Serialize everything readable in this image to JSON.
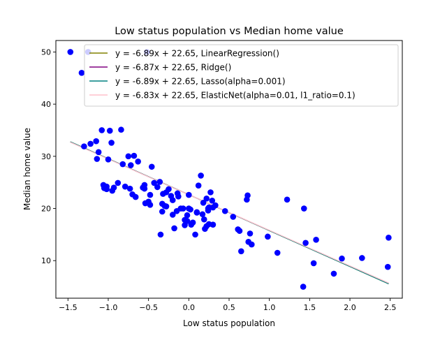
{
  "chart_data": {
    "type": "scatter",
    "title": "Low status population vs Median home value",
    "xlabel": "Low status population",
    "ylabel": "Median home value",
    "xlim": [
      -1.65,
      2.65
    ],
    "ylim": [
      2.8,
      52.2
    ],
    "xticks": [
      -1.5,
      -1.0,
      -0.5,
      0.0,
      0.5,
      1.0,
      1.5,
      2.0,
      2.5
    ],
    "xtick_labels": [
      "−1.5",
      "−1.0",
      "−0.5",
      "0.0",
      "0.5",
      "1.0",
      "1.5",
      "2.0",
      "2.5"
    ],
    "yticks": [
      10,
      20,
      30,
      40,
      50
    ],
    "ytick_labels": [
      "10",
      "20",
      "30",
      "40",
      "50"
    ],
    "grid": false,
    "legend_position": "top-right",
    "points": {
      "color": "#0000ff",
      "x": [
        -1.47,
        -1.33,
        -1.25,
        -1.22,
        -1.3,
        -1.15,
        -1.14,
        -1.08,
        -1.06,
        -1.12,
        -0.98,
        -1.0,
        -0.96,
        -1.02,
        -0.93,
        -0.88,
        -0.84,
        -0.82,
        -0.79,
        -0.75,
        -0.73,
        -0.7,
        -0.68,
        -0.66,
        -0.72,
        -0.63,
        -0.57,
        -0.54,
        -0.52,
        -0.48,
        -0.46,
        -0.43,
        -0.39,
        -0.35,
        -0.33,
        -0.3,
        -0.28,
        -0.25,
        -0.22,
        -0.2,
        -0.18,
        -0.15,
        -0.13,
        -0.1,
        -0.05,
        -0.02,
        0.0,
        0.02,
        0.05,
        0.08,
        0.1,
        0.12,
        0.15,
        0.17,
        0.19,
        0.2,
        0.22,
        0.24,
        0.25,
        0.27,
        0.29,
        0.3,
        0.33,
        -0.48,
        -0.5,
        -0.55,
        -0.32,
        -0.33,
        -0.36,
        -0.2,
        -0.14,
        -0.05,
        -0.02,
        0.0,
        0.1,
        0.22,
        0.24,
        0.3,
        0.45,
        0.55,
        0.61,
        0.63,
        0.65,
        0.72,
        0.73,
        0.74,
        0.76,
        0.78,
        0.98,
        1.1,
        1.22,
        1.42,
        1.43,
        1.45,
        1.55,
        1.58,
        1.8,
        1.9,
        2.15,
        2.47,
        2.48,
        -0.95,
        -1.05,
        -1.02,
        -0.55,
        -0.07,
        0.25,
        0.03,
        -0.28,
        0.18
      ],
      "y": [
        50.0,
        46.0,
        50.0,
        32.4,
        31.9,
        32.9,
        29.5,
        35.0,
        24.5,
        30.8,
        34.9,
        29.4,
        32.6,
        23.7,
        24.0,
        24.9,
        35.1,
        28.5,
        24.2,
        30.0,
        23.8,
        22.7,
        30.1,
        22.2,
        28.3,
        29.0,
        24.0,
        21.0,
        50.0,
        20.7,
        28.0,
        24.9,
        24.1,
        15.0,
        19.4,
        20.5,
        20.4,
        23.7,
        22.4,
        21.6,
        16.2,
        19.5,
        22.3,
        20.0,
        16.8,
        17.6,
        20.0,
        19.8,
        17.3,
        15.0,
        19.2,
        24.4,
        26.3,
        18.9,
        17.9,
        16.1,
        21.9,
        19.6,
        20.2,
        23.1,
        21.5,
        20.2,
        20.6,
        22.6,
        21.3,
        23.8,
        22.8,
        20.9,
        25.1,
        18.8,
        22.9,
        17.8,
        18.7,
        22.6,
        19.3,
        16.6,
        20.0,
        16.9,
        19.5,
        18.4,
        16.0,
        15.7,
        11.8,
        21.7,
        22.5,
        13.6,
        15.2,
        13.1,
        14.6,
        11.5,
        21.7,
        5.0,
        20.0,
        13.4,
        9.5,
        14.0,
        7.5,
        10.4,
        10.5,
        8.8,
        14.4,
        23.4,
        23.9,
        24.2,
        24.5,
        20.0,
        17.0,
        16.9,
        23.1,
        21.1
      ]
    },
    "series": [
      {
        "name": "y = -6.89x + 22.65, LinearRegression()",
        "color": "#808000",
        "slope": -6.89,
        "intercept": 22.65
      },
      {
        "name": "y = -6.87x + 22.65, Ridge()",
        "color": "#800080",
        "slope": -6.87,
        "intercept": 22.65
      },
      {
        "name": "y = -6.89x + 22.65, Lasso(alpha=0.001)",
        "color": "#008080",
        "slope": -6.89,
        "intercept": 22.65
      },
      {
        "name": "y = -6.83x + 22.65, ElasticNet(alpha=0.01, l1_ratio=0.1)",
        "color": "#ffc0cb",
        "slope": -6.83,
        "intercept": 22.65
      }
    ],
    "line_x_range": [
      -1.47,
      2.48
    ]
  }
}
